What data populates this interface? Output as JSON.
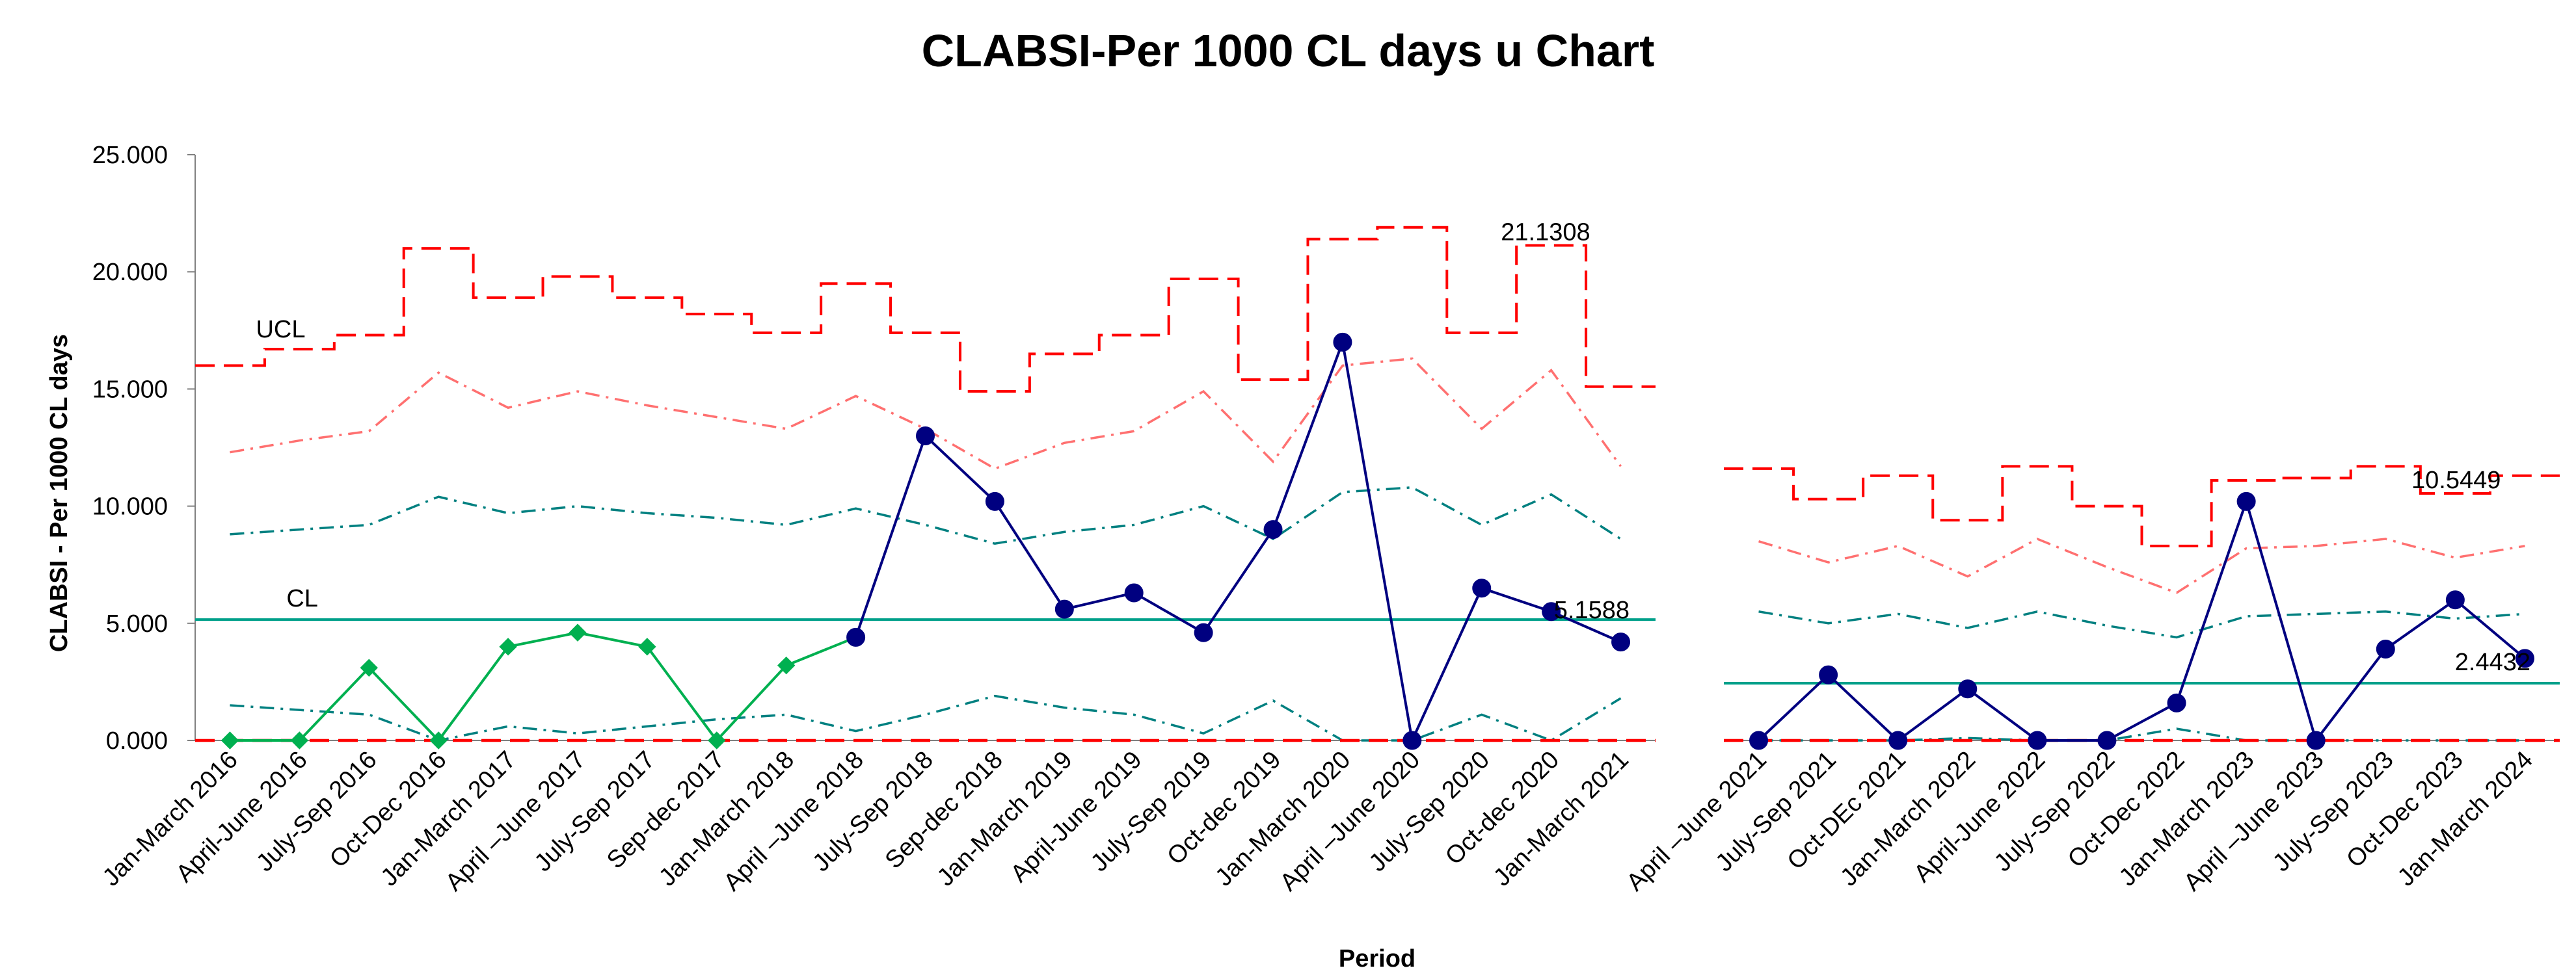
{
  "chart_data": {
    "type": "line",
    "title": "CLABSI-Per 1000 CL days u Chart",
    "xlabel": "Period",
    "ylabel": "CLABSI - Per 1000 CL days",
    "ylim": [
      0,
      25
    ],
    "yticks": [
      "0.000",
      "5.000",
      "10.000",
      "15.000",
      "20.000",
      "25.000"
    ],
    "grid": false,
    "colors": {
      "ucl": "#ff0000",
      "two_sigma": "#ff7070",
      "one_sigma": "#008080",
      "cl": "#00a08a",
      "phase1_points": "#00b050",
      "phase2_points": "#000080"
    },
    "segments": [
      {
        "categories": [
          "Jan-March 2016",
          "April-June 2016",
          "July-Sep 2016",
          "Oct-Dec 2016",
          "Jan-March 2017",
          "April –June 2017",
          "July-Sep 2017",
          "Sep-dec 2017",
          "Jan-March 2018",
          "April –June 2018",
          "July-Sep 2018",
          "Sep-dec 2018",
          "Jan-March 2019",
          "April-June 2019",
          "July-Sep 2019",
          "Oct-dec 2019",
          "Jan-March 2020",
          "April –June 2020",
          "July-Sep 2020",
          "Oct-dec 2020",
          "Jan-March 2021"
        ],
        "cl": 5.1588,
        "ucl": [
          16.0,
          16.7,
          17.3,
          21.0,
          18.9,
          19.8,
          18.9,
          18.2,
          17.4,
          19.5,
          17.4,
          14.9,
          16.5,
          17.3,
          19.7,
          15.4,
          21.4,
          21.9,
          17.4,
          21.1308,
          15.1
        ],
        "two_sigma_upper": [
          12.3,
          12.8,
          13.2,
          15.7,
          14.2,
          14.9,
          14.3,
          13.8,
          13.3,
          14.7,
          13.3,
          11.6,
          12.7,
          13.2,
          14.9,
          11.9,
          16.0,
          16.3,
          13.3,
          15.8,
          11.7
        ],
        "one_sigma_upper": [
          8.8,
          9.0,
          9.2,
          10.4,
          9.7,
          10.0,
          9.7,
          9.5,
          9.2,
          9.9,
          9.2,
          8.4,
          8.9,
          9.2,
          10.0,
          8.6,
          10.6,
          10.8,
          9.2,
          10.5,
          8.6
        ],
        "one_sigma_lower": [
          1.5,
          1.3,
          1.1,
          0.0,
          0.6,
          0.3,
          0.6,
          0.9,
          1.1,
          0.4,
          1.1,
          1.9,
          1.4,
          1.1,
          0.3,
          1.7,
          0.0,
          0.0,
          1.1,
          0.0,
          1.8
        ],
        "lcl": [
          0,
          0,
          0,
          0,
          0,
          0,
          0,
          0,
          0,
          0,
          0,
          0,
          0,
          0,
          0,
          0,
          0,
          0,
          0,
          0,
          0
        ],
        "series": [
          {
            "values": [
              0.0,
              0.0,
              3.1,
              0.0,
              4.0,
              4.6,
              4.0,
              0.0,
              3.2,
              4.4,
              null,
              null,
              null,
              null,
              null,
              null,
              null,
              null,
              null,
              null,
              null
            ]
          },
          {
            "values": [
              null,
              null,
              null,
              null,
              null,
              null,
              null,
              null,
              null,
              4.4,
              13.0,
              10.2,
              5.6,
              6.3,
              4.6,
              9.0,
              17.0,
              0.0,
              6.5,
              5.5,
              4.2
            ]
          }
        ]
      },
      {
        "categories": [
          "April –June 2021",
          "July-Sep 2021",
          "Oct-DEc 2021",
          "Jan-March 2022",
          "April-June 2022",
          "July-Sep 2022",
          "Oct-Dec 2022",
          "Jan-March 2023",
          "April –June 2023",
          "July-Sep 2023",
          "Oct-Dec 2023",
          "Jan-March 2024"
        ],
        "cl": 2.4432,
        "ucl": [
          11.6,
          10.3,
          11.3,
          9.4,
          11.7,
          10.0,
          8.3,
          11.1,
          11.2,
          11.7,
          10.5449,
          11.3
        ],
        "two_sigma_upper": [
          8.5,
          7.6,
          8.3,
          7.0,
          8.6,
          7.4,
          6.3,
          8.2,
          8.3,
          8.6,
          7.8,
          8.3
        ],
        "one_sigma_upper": [
          5.5,
          5.0,
          5.4,
          4.8,
          5.5,
          4.9,
          4.4,
          5.3,
          5.4,
          5.5,
          5.2,
          5.4
        ],
        "one_sigma_lower": [
          0.0,
          0.0,
          0.0,
          0.1,
          0.0,
          0.0,
          0.5,
          0.0,
          0.0,
          0.0,
          0.0,
          0.0
        ],
        "lcl": [
          0,
          0,
          0,
          0,
          0,
          0,
          0,
          0,
          0,
          0,
          0,
          0
        ],
        "series": [
          {
            "values": [
              0.0,
              2.8,
              0.0,
              2.2,
              0.0,
              0.0,
              1.6,
              10.2,
              0.0,
              3.9,
              6.0,
              3.5
            ]
          }
        ]
      }
    ],
    "annotations": [
      "UCL",
      "CL",
      "21.1308",
      "5.1588",
      "10.5449",
      "2.4432"
    ]
  }
}
